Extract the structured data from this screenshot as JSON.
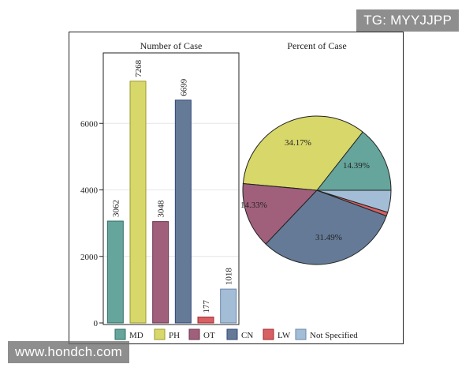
{
  "watermarks": {
    "top_right": "TG: MYYJJPP",
    "bottom_left": "www.hondch.com"
  },
  "chart_data": [
    {
      "type": "bar",
      "title": "Number of Case",
      "xlabel": "",
      "ylabel": "",
      "categories": [
        "MD",
        "PH",
        "OT",
        "CN",
        "LW",
        "Not Specified"
      ],
      "values": [
        3062,
        7268,
        3048,
        6699,
        177,
        1018
      ],
      "data_labels": [
        "3062",
        "7268",
        "3048",
        "6699",
        "177",
        "1018"
      ],
      "yticks": [
        0,
        2000,
        4000,
        6000
      ],
      "ytick_labels": [
        "0",
        "2000",
        "4000",
        "6000"
      ],
      "ylim": [
        0,
        8000
      ],
      "grid": true,
      "colors": [
        "#66a59c",
        "#d8d76a",
        "#a0607b",
        "#647a97",
        "#d85f63",
        "#a4bdd6"
      ],
      "edge_colors": [
        "#2f6e66",
        "#9a9a30",
        "#6c3550",
        "#32467a",
        "#a02a2e",
        "#6a86a8"
      ]
    },
    {
      "type": "pie",
      "title": "Percent of Case",
      "categories": [
        "MD",
        "PH",
        "OT",
        "CN",
        "LW",
        "Not Specified"
      ],
      "values": [
        14.39,
        34.17,
        14.33,
        31.49,
        0.83,
        4.79
      ],
      "slice_labels": [
        "14.39%",
        "34.17%",
        "14.33%",
        "31.49%",
        "",
        ""
      ],
      "colors": [
        "#66a59c",
        "#d8d76a",
        "#a0607b",
        "#647a97",
        "#d85f63",
        "#a4bdd6"
      ]
    }
  ],
  "legend": {
    "placement": "bottom",
    "items": [
      "MD",
      "PH",
      "OT",
      "CN",
      "LW",
      "Not Specified"
    ]
  }
}
